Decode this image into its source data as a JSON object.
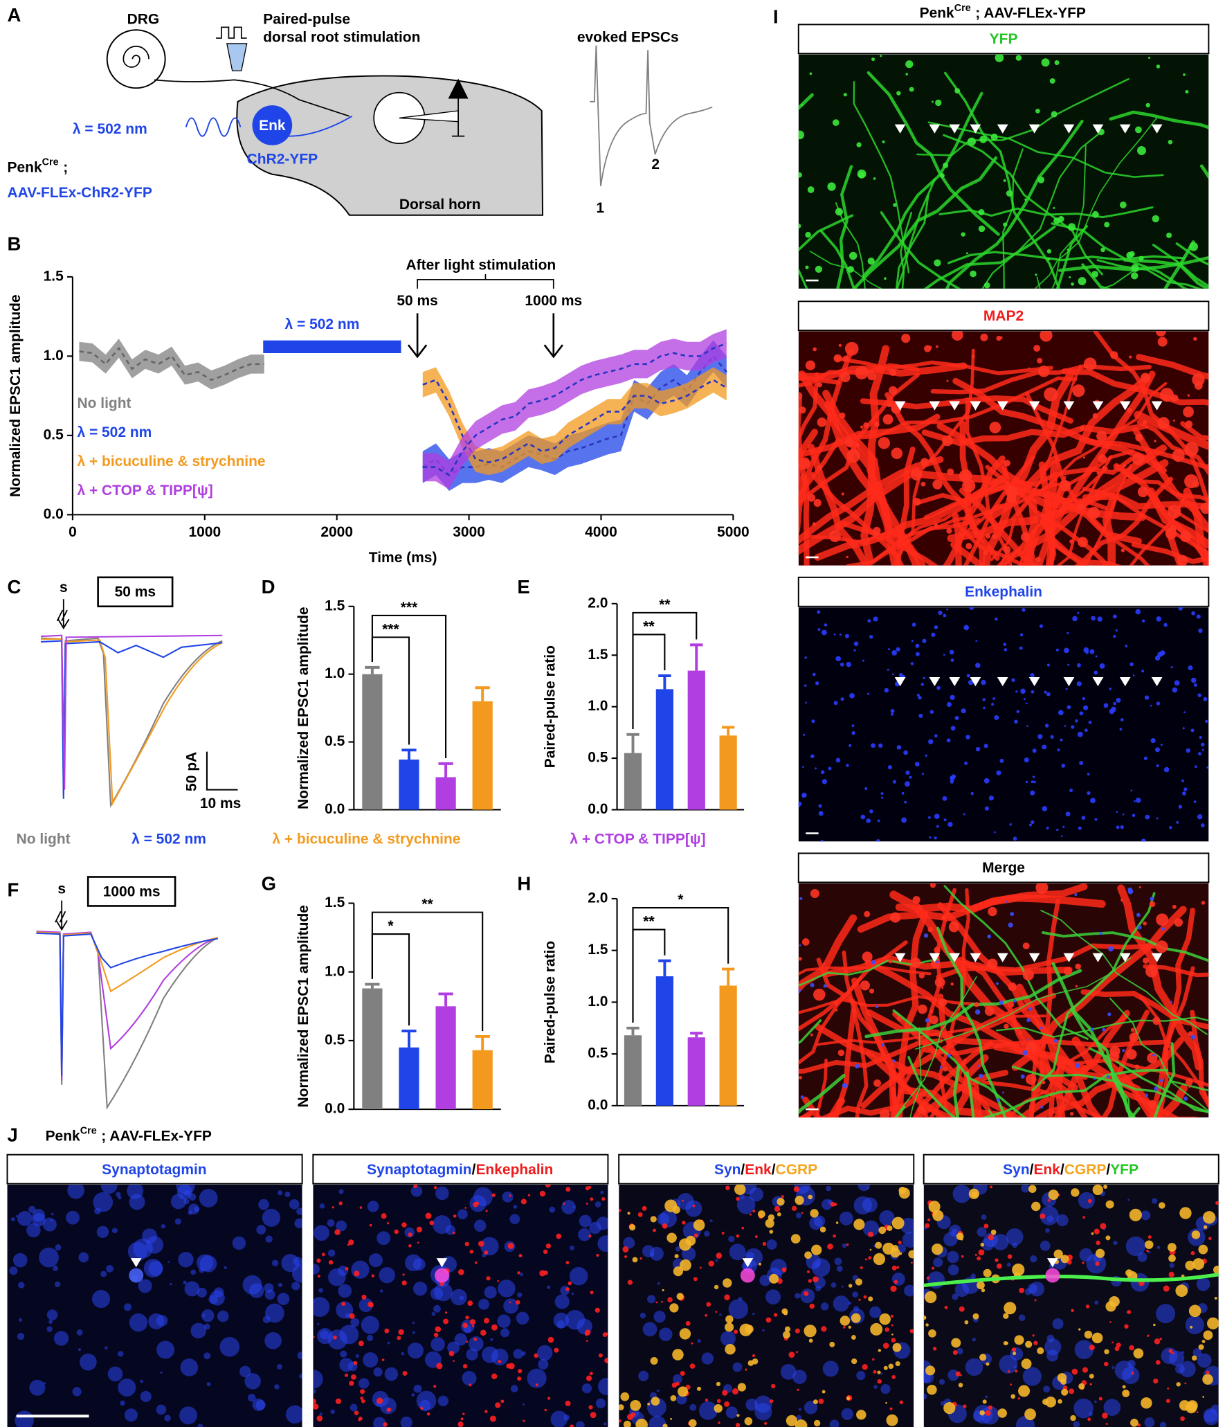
{
  "panel_labels": [
    "A",
    "B",
    "C",
    "D",
    "E",
    "F",
    "G",
    "H",
    "I",
    "J"
  ],
  "panel_a": {
    "drg": "DRG",
    "stim_line1": "Paired-pulse",
    "stim_line2": "dorsal root stimulation",
    "light": "λ = 502 nm",
    "neuron": "Enk",
    "opsin": "ChR2-YFP",
    "mouse": {
      "gene": "Penk",
      "superscript": "Cre",
      "separator": ";"
    },
    "virus": "AAV-FLEx-ChR2-YFP",
    "region": "Dorsal horn",
    "trace_title": "evoked EPSCs",
    "pulse_1": "1",
    "pulse_2": "2"
  },
  "chart_data": [
    {
      "type": "line",
      "ylabel": "Normalized EPSC1 amplitude",
      "xlabel": "Time (ms)",
      "xlim": [
        0,
        5000
      ],
      "xticks": [
        0,
        1000,
        2000,
        3000,
        4000,
        5000
      ],
      "ylim": [
        0,
        1.5
      ],
      "yticks": [
        {
          "value": 0,
          "label": "0.0"
        },
        0.5,
        {
          "value": 1,
          "label": "1.0"
        },
        1.5
      ],
      "annotations": {
        "after": "After light stimulation",
        "early": "50 ms",
        "late": "1000 ms",
        "light": "λ = 502 nm"
      },
      "series": [
        {
          "name": "No light",
          "color": "#808080",
          "error": 0.06,
          "x": [
            50,
            150,
            250,
            350,
            450,
            550,
            650,
            750,
            850,
            950,
            1050,
            1150,
            1250,
            1350,
            1450
          ],
          "values": [
            1.03,
            1.02,
            0.95,
            1.05,
            0.92,
            0.98,
            0.95,
            1.0,
            0.88,
            0.9,
            0.85,
            0.88,
            0.92,
            0.95,
            0.95
          ]
        },
        {
          "name": "λ = 502 nm",
          "color": "#1f45e8",
          "error": 0.1,
          "x": [
            2650,
            2750,
            2850,
            2950,
            3050,
            3150,
            3250,
            3350,
            3450,
            3550,
            3650,
            3750,
            3850,
            3950,
            4050,
            4150,
            4250,
            4350,
            4450,
            4550,
            4650,
            4750,
            4850,
            4950
          ],
          "values": [
            0.3,
            0.35,
            0.25,
            0.3,
            0.3,
            0.32,
            0.3,
            0.35,
            0.4,
            0.38,
            0.35,
            0.4,
            0.42,
            0.45,
            0.48,
            0.5,
            0.75,
            0.7,
            0.8,
            0.85,
            0.78,
            0.9,
            1.0,
            0.9
          ]
        },
        {
          "name": "λ + bicuculine & strychnine",
          "color": "#f39a1e",
          "error": 0.08,
          "x": [
            2650,
            2750,
            2850,
            2950,
            3050,
            3150,
            3250,
            3350,
            3450,
            3550,
            3650,
            3750,
            3850,
            3950,
            4050,
            4150,
            4250,
            4350,
            4450,
            4550,
            4650,
            4750,
            4850,
            4950
          ],
          "values": [
            0.82,
            0.85,
            0.7,
            0.5,
            0.35,
            0.33,
            0.35,
            0.4,
            0.45,
            0.4,
            0.42,
            0.5,
            0.55,
            0.6,
            0.65,
            0.65,
            0.75,
            0.75,
            0.7,
            0.72,
            0.75,
            0.8,
            0.85,
            0.8
          ]
        },
        {
          "name": "λ + CTOP & TIPP[ψ]",
          "color": "#b03ee0",
          "error": 0.09,
          "x": [
            2650,
            2750,
            2850,
            2950,
            3050,
            3150,
            3250,
            3350,
            3450,
            3550,
            3650,
            3750,
            3850,
            3950,
            4050,
            4150,
            4250,
            4350,
            4450,
            4550,
            4650,
            4750,
            4850,
            4950
          ],
          "values": [
            0.3,
            0.3,
            0.25,
            0.4,
            0.5,
            0.55,
            0.6,
            0.62,
            0.7,
            0.72,
            0.75,
            0.8,
            0.85,
            0.88,
            0.9,
            0.92,
            0.95,
            0.95,
            1.0,
            1.02,
            1.0,
            1.0,
            1.05,
            1.08
          ]
        }
      ]
    },
    {
      "type": "bar",
      "ylabel": "Normalized EPSC1 amplitude",
      "ylim": [
        0,
        1.5
      ],
      "yticks": [
        {
          "value": 0,
          "label": "0.0"
        },
        0.5,
        {
          "value": 1,
          "label": "1.0"
        },
        1.5
      ],
      "values": [
        1.0,
        0.37,
        0.24,
        0.8
      ],
      "errors": [
        0.05,
        0.07,
        0.1,
        0.1
      ],
      "colors": [
        "#808080",
        "#1f45e8",
        "#b03ee0",
        "#f39a1e"
      ],
      "significance": [
        {
          "label": "***",
          "from": 0,
          "to": 1
        },
        {
          "label": "***",
          "from": 0,
          "to": 2
        }
      ]
    },
    {
      "type": "bar",
      "ylabel": "Paired-pulse ratio",
      "ylim": [
        0,
        2
      ],
      "yticks": [
        {
          "value": 0,
          "label": "0.0"
        },
        0.5,
        {
          "value": 1,
          "label": "1.0"
        },
        1.5,
        {
          "value": 2,
          "label": "2.0"
        }
      ],
      "values": [
        0.55,
        1.17,
        1.35,
        0.72
      ],
      "errors": [
        0.18,
        0.13,
        0.25,
        0.08
      ],
      "colors": [
        "#808080",
        "#1f45e8",
        "#b03ee0",
        "#f39a1e"
      ],
      "significance": [
        {
          "label": "**",
          "from": 0,
          "to": 1
        },
        {
          "label": "**",
          "from": 0,
          "to": 2
        }
      ]
    },
    {
      "type": "bar",
      "ylabel": "Normalized EPSC1 amplitude",
      "ylim": [
        0,
        1.5
      ],
      "yticks": [
        {
          "value": 0,
          "label": "0.0"
        },
        0.5,
        {
          "value": 1,
          "label": "1.0"
        },
        1.5
      ],
      "values": [
        0.88,
        0.45,
        0.75,
        0.43
      ],
      "errors": [
        0.03,
        0.12,
        0.09,
        0.1
      ],
      "colors": [
        "#808080",
        "#1f45e8",
        "#b03ee0",
        "#f39a1e"
      ],
      "significance": [
        {
          "label": "*",
          "from": 0,
          "to": 1
        },
        {
          "label": "**",
          "from": 0,
          "to": 3
        }
      ]
    },
    {
      "type": "bar",
      "ylabel": "Paired-pulse ratio",
      "ylim": [
        0,
        2
      ],
      "yticks": [
        {
          "value": 0,
          "label": "0.0"
        },
        0.5,
        {
          "value": 1,
          "label": "1.0"
        },
        1.5,
        {
          "value": 2,
          "label": "2.0"
        }
      ],
      "values": [
        0.68,
        1.25,
        0.66,
        1.16
      ],
      "errors": [
        0.07,
        0.15,
        0.04,
        0.16
      ],
      "colors": [
        "#808080",
        "#1f45e8",
        "#b03ee0",
        "#f39a1e"
      ],
      "significance": [
        {
          "label": "**",
          "from": 0,
          "to": 1
        },
        {
          "label": "*",
          "from": 0,
          "to": 3
        }
      ]
    }
  ],
  "panel_c": {
    "stimulus": "s",
    "delay": "50 ms",
    "scale_y": "50 pA",
    "scale_x": "10 ms"
  },
  "panel_f": {
    "stimulus": "s",
    "delay": "1000 ms"
  },
  "panel_i": {
    "title": {
      "gene": "Penk",
      "superscript": "Cre",
      "construct": "; AAV-FLEx-YFP"
    },
    "images": [
      {
        "label": "YFP",
        "color": "#22c522"
      },
      {
        "label": "MAP2",
        "color": "#ee1c1c"
      },
      {
        "label": "Enkephalin",
        "color": "#1f45e8"
      },
      {
        "label": "Merge",
        "color": "#000000"
      }
    ]
  },
  "panel_j": {
    "title": {
      "gene": "Penk",
      "superscript": "Cre",
      "construct": "; AAV-FLEx-YFP"
    },
    "images": [
      [
        {
          "text": "Synaptotagmin",
          "color": "#1f45e8"
        }
      ],
      [
        {
          "text": "Synaptotagmin",
          "color": "#1f45e8"
        },
        {
          "text": "/",
          "color": "#000000"
        },
        {
          "text": "Enkephalin",
          "color": "#ee1c1c"
        }
      ],
      [
        {
          "text": "Syn",
          "color": "#1f45e8"
        },
        {
          "text": "/",
          "color": "#000000"
        },
        {
          "text": "Enk",
          "color": "#ee1c1c"
        },
        {
          "text": "/",
          "color": "#000000"
        },
        {
          "text": "CGRP",
          "color": "#f3a51e"
        }
      ],
      [
        {
          "text": "Syn",
          "color": "#1f45e8"
        },
        {
          "text": "/",
          "color": "#000000"
        },
        {
          "text": "Enk",
          "color": "#ee1c1c"
        },
        {
          "text": "/",
          "color": "#000000"
        },
        {
          "text": "CGRP",
          "color": "#f3a51e"
        },
        {
          "text": "/",
          "color": "#000000"
        },
        {
          "text": "YFP",
          "color": "#22c522"
        }
      ]
    ]
  }
}
